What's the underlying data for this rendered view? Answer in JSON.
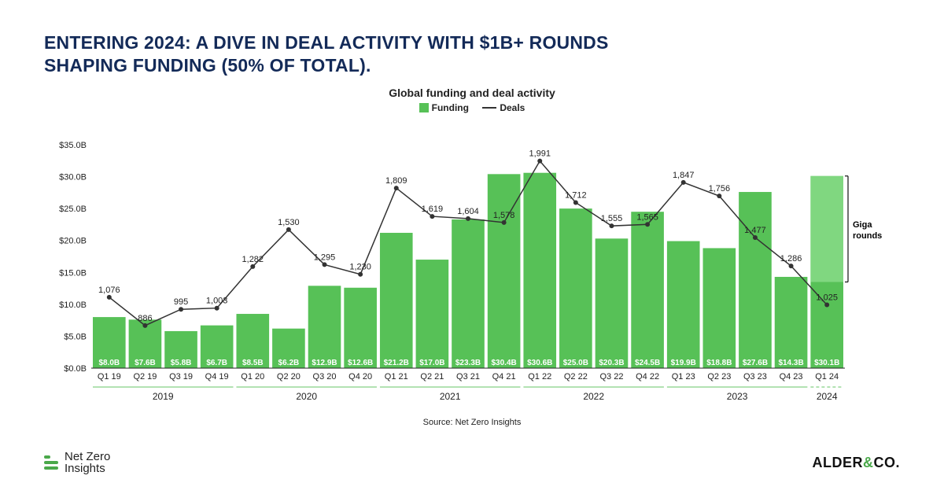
{
  "title": "ENTERING 2024: A DIVE IN DEAL ACTIVITY WITH $1B+ ROUNDS SHAPING FUNDING (50% OF TOTAL).",
  "chart": {
    "subtitle": "Global funding and deal activity",
    "legend": {
      "funding": "Funding",
      "deals": "Deals"
    },
    "source": "Source: Net Zero Insights",
    "annotation": {
      "label_line1": "Giga",
      "label_line2": "rounds"
    },
    "funding_color": "#57c157",
    "giga_overlay_color": "rgba(146,224,146,0.7)",
    "line_color": "#333333",
    "marker_color": "#333333",
    "grid_color": "#e6e6e6",
    "background_color": "#ffffff",
    "y_axis": {
      "min": 0,
      "max": 35,
      "step": 5,
      "ticks": [
        "$0.0B",
        "$5.0B",
        "$10.0B",
        "$15.0B",
        "$20.0B",
        "$25.0B",
        "$30.0B",
        "$35.0B"
      ]
    },
    "deals_axis": {
      "min": 600,
      "max": 2100
    },
    "categories": [
      "Q1 19",
      "Q2 19",
      "Q3 19",
      "Q4 19",
      "Q1 20",
      "Q2 20",
      "Q3 20",
      "Q4 20",
      "Q1 21",
      "Q2 21",
      "Q3 21",
      "Q4 21",
      "Q1 22",
      "Q2 22",
      "Q3 22",
      "Q4 22",
      "Q1 23",
      "Q2 23",
      "Q3 23",
      "Q4 23",
      "Q1 24"
    ],
    "funding_values": [
      8.0,
      7.6,
      5.8,
      6.7,
      8.5,
      6.2,
      12.9,
      12.6,
      21.2,
      17.0,
      23.3,
      30.4,
      30.6,
      25.0,
      20.3,
      24.5,
      19.9,
      18.8,
      27.6,
      14.3,
      30.1
    ],
    "funding_labels": [
      "$8.0B",
      "$7.6B",
      "$5.8B",
      "$6.7B",
      "$8.5B",
      "$6.2B",
      "$12.9B",
      "$12.6B",
      "$21.2B",
      "$17.0B",
      "$23.3B",
      "$30.4B",
      "$30.6B",
      "$25.0B",
      "$20.3B",
      "$24.5B",
      "$19.9B",
      "$18.8B",
      "$27.6B",
      "$14.3B",
      "$30.1B"
    ],
    "giga_base_last": 13.5,
    "deals_values": [
      1076,
      886,
      995,
      1003,
      1282,
      1530,
      1295,
      1230,
      1809,
      1619,
      1604,
      1578,
      1991,
      1712,
      1555,
      1565,
      1847,
      1756,
      1477,
      1286,
      1025
    ],
    "deals_labels": [
      "1,076",
      "886",
      "995",
      "1,003",
      "1,282",
      "1,530",
      "1,295",
      "1,230",
      "1,809",
      "1,619",
      "1,604",
      "1,578",
      "1,991",
      "1,712",
      "1,555",
      "1,565",
      "1,847",
      "1,756",
      "1,477",
      "1,286",
      "1,025"
    ],
    "year_groups": [
      {
        "label": "2019",
        "start": 0,
        "end": 3
      },
      {
        "label": "2020",
        "start": 4,
        "end": 7
      },
      {
        "label": "2021",
        "start": 8,
        "end": 11
      },
      {
        "label": "2022",
        "start": 12,
        "end": 15
      },
      {
        "label": "2023",
        "start": 16,
        "end": 19
      },
      {
        "label": "2024",
        "start": 20,
        "end": 20
      }
    ]
  },
  "logos": {
    "nzi_line1": "Net Zero",
    "nzi_line2": "Insights",
    "alder_pre": "ALDER",
    "alder_amp": "&",
    "alder_post": "CO."
  }
}
